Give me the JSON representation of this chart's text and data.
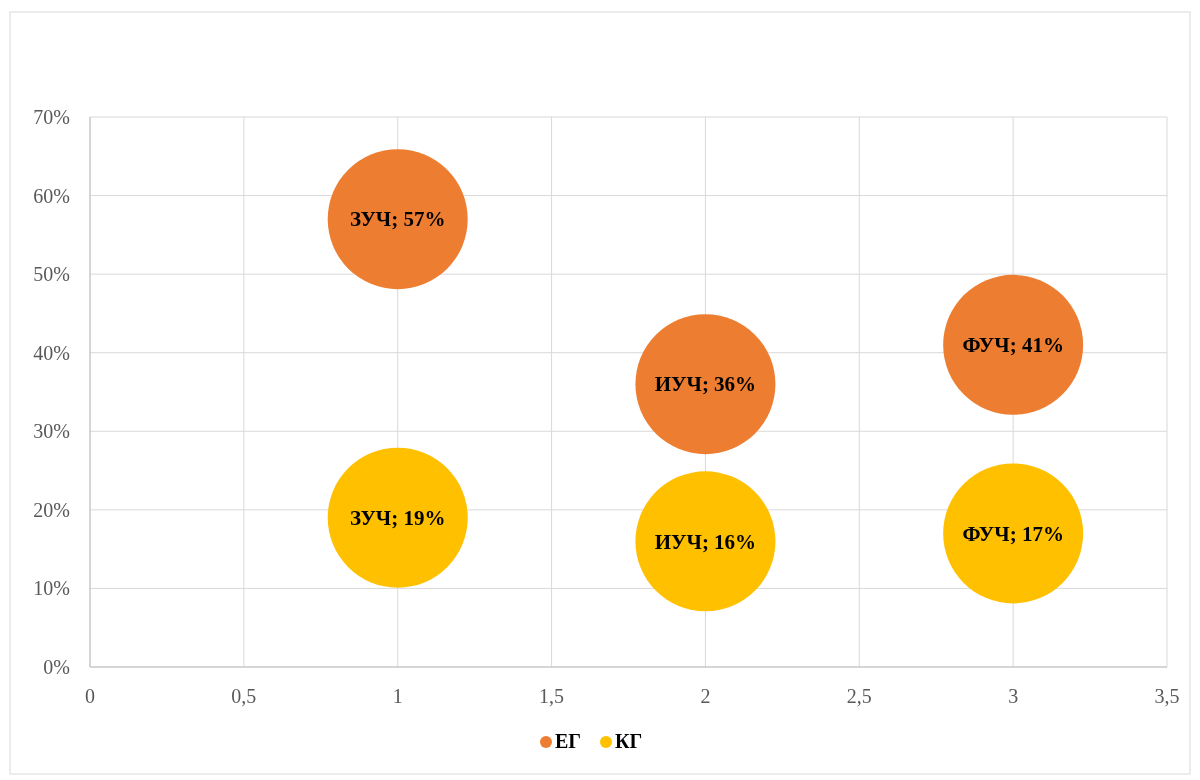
{
  "chart_data": {
    "type": "bubble",
    "x": [
      1,
      2,
      3
    ],
    "series": [
      {
        "name": "ЕГ",
        "color": "#ed7d31",
        "values": [
          57,
          36,
          41
        ],
        "sizes": [
          1,
          1,
          1
        ],
        "value_labels": [
          "ЗУЧ; 57%",
          "ИУЧ; 36%",
          "ФУЧ; 41%"
        ]
      },
      {
        "name": "КГ",
        "color": "#ffc000",
        "values": [
          19,
          16,
          17
        ],
        "sizes": [
          1,
          1,
          1
        ],
        "value_labels": [
          "ЗУЧ; 19%",
          "ИУЧ; 16%",
          "ФУЧ; 17%"
        ]
      }
    ],
    "xlim": [
      0,
      3.5
    ],
    "xticks": [
      0,
      {
        "value": 0.5,
        "label": "0,5"
      },
      1,
      {
        "value": 1.5,
        "label": "1,5"
      },
      2,
      {
        "value": 2.5,
        "label": "2,5"
      },
      3,
      {
        "value": 3.5,
        "label": "3,5"
      }
    ],
    "ylim": [
      0,
      70
    ],
    "yticks": [
      {
        "value": 0,
        "label": "0%"
      },
      {
        "value": 10,
        "label": "10%"
      },
      {
        "value": 20,
        "label": "20%"
      },
      {
        "value": 30,
        "label": "30%"
      },
      {
        "value": 40,
        "label": "40%"
      },
      {
        "value": 50,
        "label": "50%"
      },
      {
        "value": 60,
        "label": "60%"
      },
      {
        "value": 70,
        "label": "70%"
      }
    ],
    "grid": true,
    "legend": "bottom"
  }
}
